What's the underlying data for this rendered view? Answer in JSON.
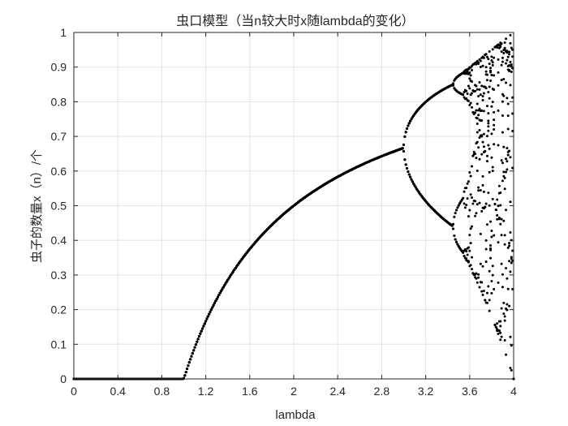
{
  "chart_data": {
    "type": "scatter",
    "title": "虫口模型（当n较大时x随lambda的变化）",
    "xlabel": "lambda",
    "ylabel": "虫子的数量x（n）/个",
    "xlim": [
      0,
      4
    ],
    "ylim": [
      0,
      1
    ],
    "xticks": [
      "0",
      "0.4",
      "0.8",
      "1.2",
      "1.6",
      "2",
      "2.4",
      "2.8",
      "3.2",
      "3.6",
      "4"
    ],
    "xtick_values": [
      0,
      0.4,
      0.8,
      1.2,
      1.6,
      2,
      2.4,
      2.8,
      3.2,
      3.6,
      4
    ],
    "yticks": [
      "0",
      "0.1",
      "0.2",
      "0.3",
      "0.4",
      "0.5",
      "0.6",
      "0.7",
      "0.8",
      "0.9",
      "1"
    ],
    "ytick_values": [
      0,
      0.1,
      0.2,
      0.3,
      0.4,
      0.5,
      0.6,
      0.7,
      0.8,
      0.9,
      1
    ],
    "grid": true,
    "marker_color": "#000000",
    "series": [
      {
        "model": "logistic map x(n+1) = lambda * x(n) * (1 - x(n))",
        "lambda_range": [
          0,
          4
        ],
        "lambda_step": 0.01,
        "samples_per_lambda": 10
      }
    ]
  }
}
